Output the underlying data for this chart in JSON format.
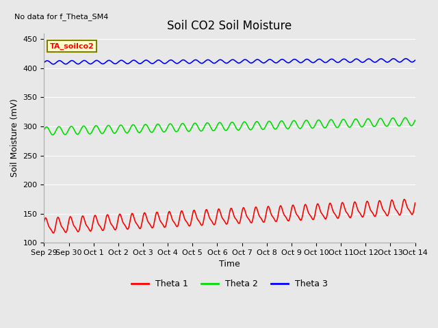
{
  "title": "Soil CO2 Soil Moisture",
  "xlabel": "Time",
  "ylabel": "Soil Moisture (mV)",
  "no_data_text": "No data for f_Theta_SM4",
  "legend_label": "TA_soilco2",
  "ylim": [
    100,
    460
  ],
  "yticks": [
    100,
    150,
    200,
    250,
    300,
    350,
    400,
    450
  ],
  "x_labels": [
    "Sep 29",
    "Sep 30",
    "Oct 1",
    "Oct 2",
    "Oct 3",
    "Oct 4",
    "Oct 5",
    "Oct 6",
    "Oct 7",
    "Oct 8",
    "Oct 9",
    "Oct 10",
    "Oct 11",
    "Oct 12",
    "Oct 13",
    "Oct 14"
  ],
  "theta1_color": "#ff0000",
  "theta2_color": "#00dd00",
  "theta3_color": "#0000ff",
  "background_color": "#e8e8e8",
  "fig_background": "#e8e8e8",
  "grid_color": "#ffffff",
  "title_fontsize": 12,
  "label_fontsize": 9,
  "tick_fontsize": 8,
  "linewidth": 1.2
}
